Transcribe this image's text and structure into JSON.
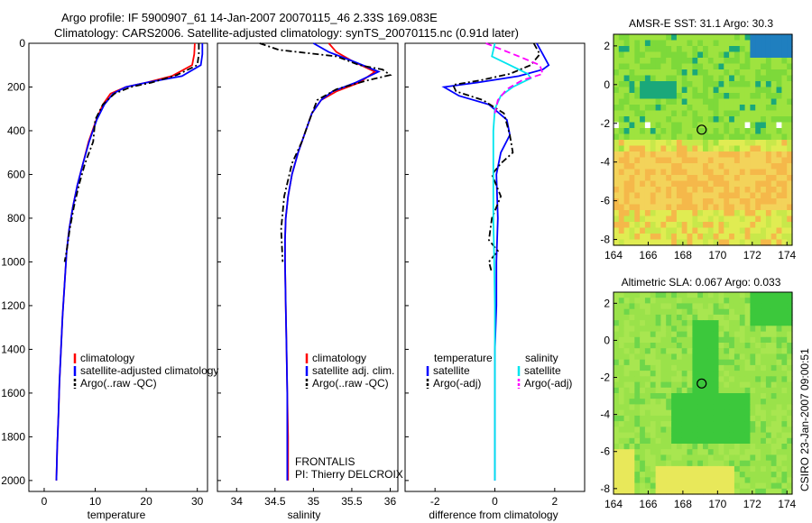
{
  "title": {
    "line1": "Argo profile: IF 5900907_61 14-Jan-2007 20070115_46 2.33S 169.083E",
    "line2": "Climatology: CARS2006. Satellite-adjusted climatology: synTS_20070115.nc (0.91d later)"
  },
  "side_label": "CSIRO 23-Jan-2007 09:00:51",
  "colors": {
    "climatology": "#ff0000",
    "satellite": "#0000ff",
    "argo": "#000000",
    "satellite_diff": "#00e5ee",
    "argo_adj": "#ff00ff"
  },
  "chart_data": [
    {
      "type": "line",
      "xlabel": "temperature",
      "xlim": [
        -3,
        32
      ],
      "xticks": [
        0,
        10,
        20,
        30
      ],
      "ylim": [
        0,
        2050
      ],
      "yticks": [
        0,
        200,
        400,
        600,
        800,
        1000,
        1200,
        1400,
        1600,
        1800,
        2000
      ],
      "y_inverted": true,
      "legend": {
        "placement": "lower-right",
        "entries": [
          "climatology",
          "satellite-adjusted climatology",
          "Argo(..raw -QC)"
        ]
      },
      "series": [
        {
          "name": "climatology",
          "color": "#ff0000",
          "dash": "solid",
          "x": [
            29.5,
            29.4,
            29.0,
            25.0,
            20.0,
            16.0,
            13.0,
            11.5,
            10.2,
            8.7,
            7.6,
            6.5,
            5.6,
            4.9,
            4.4,
            4.0,
            3.6,
            3.3,
            3.0,
            2.8,
            2.55,
            2.4
          ],
          "y": [
            0,
            50,
            100,
            150,
            180,
            200,
            230,
            280,
            350,
            450,
            550,
            650,
            750,
            850,
            950,
            1100,
            1250,
            1400,
            1550,
            1700,
            1850,
            2000
          ]
        },
        {
          "name": "satellite-adjusted climatology",
          "color": "#0000ff",
          "dash": "solid",
          "x": [
            31.0,
            31.0,
            30.7,
            27.0,
            20.0,
            16.0,
            13.5,
            11.8,
            10.3,
            8.8,
            7.6,
            6.5,
            5.6,
            4.9,
            4.4,
            4.0,
            3.6,
            3.3,
            3.0,
            2.8,
            2.55,
            2.4
          ],
          "y": [
            0,
            50,
            100,
            150,
            180,
            200,
            230,
            280,
            350,
            450,
            550,
            650,
            750,
            850,
            950,
            1100,
            1250,
            1400,
            1550,
            1700,
            1850,
            2000
          ]
        },
        {
          "name": "Argo(..raw -QC)",
          "color": "#000000",
          "dash": "dashdot",
          "x": [
            30.3,
            30.3,
            30.0,
            26.0,
            21.0,
            17.0,
            13.8,
            11.5,
            10.0,
            9.6,
            8.0,
            6.8,
            5.8,
            5.0,
            4.4,
            4.0
          ],
          "y": [
            0,
            50,
            100,
            145,
            180,
            200,
            230,
            280,
            350,
            450,
            550,
            650,
            750,
            850,
            950,
            1000
          ]
        }
      ]
    },
    {
      "type": "line",
      "xlabel": "salinity",
      "xlim": [
        33.75,
        36.1
      ],
      "xticks": [
        34,
        34.5,
        35,
        35.5,
        36
      ],
      "ylim": [
        0,
        2050
      ],
      "y_inverted": true,
      "legend": {
        "placement": "lower-right",
        "entries": [
          "climatology",
          "satellite adj. clim.",
          "Argo(..raw -QC)"
        ]
      },
      "annotations": [
        "FRONTALIS",
        "PI: Thierry DELCROIX"
      ],
      "series": [
        {
          "name": "climatology",
          "color": "#ff0000",
          "dash": "solid",
          "x": [
            35.2,
            35.3,
            35.5,
            35.8,
            35.6,
            35.3,
            35.1,
            34.98,
            34.9,
            34.8,
            34.72,
            34.67,
            34.64,
            34.63,
            34.63,
            34.64,
            34.65,
            34.66,
            34.67,
            34.67,
            34.67
          ],
          "y": [
            0,
            40,
            80,
            130,
            180,
            220,
            260,
            320,
            400,
            500,
            600,
            700,
            800,
            900,
            1000,
            1200,
            1400,
            1600,
            1800,
            1900,
            2000
          ]
        },
        {
          "name": "satellite adj. clim.",
          "color": "#0000ff",
          "dash": "solid",
          "x": [
            35.0,
            35.2,
            35.5,
            35.85,
            35.55,
            35.25,
            35.1,
            34.98,
            34.9,
            34.8,
            34.72,
            34.67,
            34.64,
            34.63,
            34.63,
            34.64,
            34.65,
            34.66,
            34.66,
            34.66,
            34.66
          ],
          "y": [
            0,
            40,
            80,
            130,
            180,
            220,
            260,
            320,
            400,
            500,
            600,
            700,
            800,
            900,
            1000,
            1200,
            1400,
            1600,
            1800,
            1900,
            2000
          ]
        },
        {
          "name": "Argo(..raw -QC)",
          "color": "#000000",
          "dash": "dashdot",
          "x": [
            34.3,
            34.55,
            35.3,
            35.6,
            35.9,
            36.0,
            35.7,
            35.3,
            35.05,
            34.95,
            34.85,
            34.72,
            34.62,
            34.58,
            34.6
          ],
          "y": [
            0,
            30,
            60,
            100,
            120,
            145,
            170,
            210,
            260,
            350,
            450,
            550,
            700,
            850,
            1000
          ]
        }
      ]
    },
    {
      "type": "line",
      "xlabel": "difference from climatology",
      "xlim": [
        -3,
        3
      ],
      "xticks": [
        -2,
        0,
        2
      ],
      "ylim": [
        0,
        2050
      ],
      "y_inverted": true,
      "legend": {
        "placement": "lower-center",
        "entries": [
          "temperature",
          "satellite",
          "Argo(-adj)",
          "salinity",
          "satellite",
          "Argo(-adj)"
        ]
      },
      "series": [
        {
          "name": "temperature satellite",
          "color": "#0000ff",
          "dash": "solid",
          "x": [
            1.4,
            1.6,
            1.8,
            1.6,
            0.8,
            -0.6,
            -1.7,
            -1.2,
            -0.2,
            0.4,
            0.5,
            0.2,
            0.05,
            0.1,
            0.05,
            0.05,
            0.0,
            0.0,
            0.0,
            0.0
          ],
          "y": [
            0,
            50,
            100,
            120,
            150,
            180,
            200,
            240,
            280,
            350,
            420,
            500,
            600,
            800,
            1000,
            1200,
            1400,
            1600,
            1800,
            2000
          ]
        },
        {
          "name": "temperature Argo(-adj)",
          "color": "#000000",
          "dash": "dashdot",
          "x": [
            1.3,
            1.5,
            1.2,
            0.5,
            -0.5,
            -1.4,
            -1.3,
            -0.4,
            0.3,
            0.5,
            0.6,
            0.2,
            -0.1,
            0.2,
            -0.1,
            -0.2,
            0.1,
            -0.2,
            -0.1
          ],
          "y": [
            0,
            50,
            100,
            140,
            170,
            190,
            220,
            260,
            320,
            420,
            500,
            550,
            600,
            700,
            800,
            900,
            950,
            1000,
            1050
          ]
        },
        {
          "name": "salinity satellite",
          "color": "#00e5ee",
          "dash": "solid",
          "x": [
            0.0,
            -0.1,
            0.5,
            1.1,
            1.2,
            0.6,
            0.2,
            0.0,
            -0.05,
            -0.05,
            -0.05,
            -0.05,
            -0.02,
            0.0,
            0.0,
            0.0,
            0.0,
            0.0
          ],
          "y": [
            0,
            60,
            100,
            140,
            160,
            200,
            240,
            300,
            400,
            500,
            600,
            800,
            1000,
            1200,
            1400,
            1600,
            1800,
            2000
          ]
        },
        {
          "name": "salinity Argo(-adj)",
          "color": "#ff00ff",
          "dash": "dashed",
          "x": [
            -0.3,
            0.8,
            1.5,
            1.6,
            0.9,
            0.4,
            0.1,
            0.0
          ],
          "y": [
            0,
            60,
            100,
            140,
            170,
            210,
            260,
            320
          ]
        }
      ]
    },
    {
      "type": "heatmap",
      "title": "AMSR-E SST: 31.1  Argo: 30.3",
      "xlim": [
        164,
        174.3
      ],
      "xticks": [
        164,
        166,
        168,
        170,
        172,
        174
      ],
      "ylim": [
        -8.3,
        2.6
      ],
      "yticks": [
        -8,
        -6,
        -4,
        -2,
        0,
        2
      ],
      "marker": {
        "x": 169.083,
        "y": -2.33
      }
    },
    {
      "type": "heatmap",
      "title": "Altimetric SLA: 0.067  Argo: 0.033",
      "xlim": [
        164,
        174.3
      ],
      "xticks": [
        164,
        166,
        168,
        170,
        172,
        174
      ],
      "ylim": [
        -8.3,
        2.6
      ],
      "yticks": [
        -8,
        -6,
        -4,
        -2,
        0,
        2
      ],
      "marker": {
        "x": 169.083,
        "y": -2.33
      }
    }
  ]
}
